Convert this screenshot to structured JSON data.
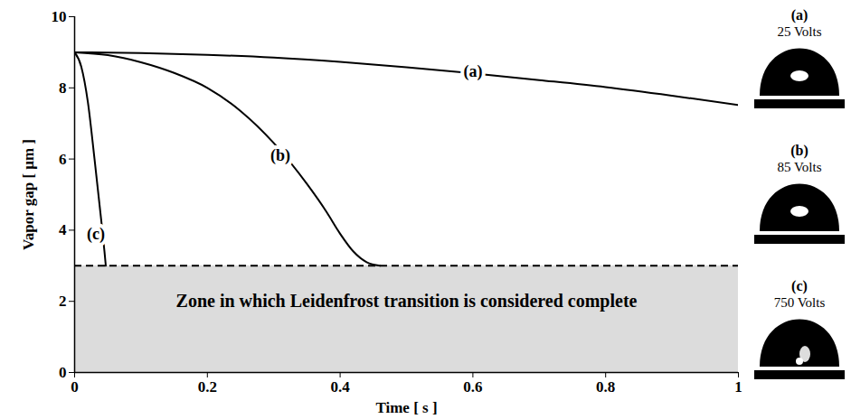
{
  "chart_data": {
    "type": "line",
    "x_label": "Time [ s ]",
    "y_label": "Vapor gap [ μm ]",
    "xlim": [
      0,
      1
    ],
    "xticks": [
      0,
      0.2,
      0.4,
      0.6,
      0.8,
      1
    ],
    "ylim": [
      0,
      10
    ],
    "yticks": [
      0,
      2,
      4,
      6,
      8,
      10
    ],
    "grid": false,
    "series": [
      {
        "name": "(a)",
        "color": "#000000",
        "line_style": "solid",
        "label_x": 0.6,
        "label_y": 8.45,
        "x": [
          0,
          0.1,
          0.2,
          0.3,
          0.4,
          0.5,
          0.6,
          0.7,
          0.8,
          0.9,
          1
        ],
        "values": [
          9,
          8.98,
          8.93,
          8.85,
          8.73,
          8.58,
          8.41,
          8.22,
          8.02,
          7.78,
          7.52
        ]
      },
      {
        "name": "(b)",
        "color": "#000000",
        "line_style": "solid",
        "label_x": 0.31,
        "label_y": 6.1,
        "x": [
          0,
          0.05,
          0.1,
          0.15,
          0.2,
          0.25,
          0.3,
          0.35,
          0.38,
          0.4,
          0.42,
          0.44,
          0.46
        ],
        "values": [
          9,
          8.92,
          8.72,
          8.42,
          8.0,
          7.35,
          6.45,
          5.3,
          4.5,
          3.9,
          3.4,
          3.1,
          3.0
        ]
      },
      {
        "name": "(c)",
        "color": "#000000",
        "line_style": "solid",
        "label_x": 0.032,
        "label_y": 3.9,
        "x": [
          0,
          0.01,
          0.02,
          0.03,
          0.04,
          0.045,
          0.047
        ],
        "values": [
          9,
          8.6,
          7.6,
          6.0,
          4.3,
          3.4,
          3.0
        ]
      }
    ],
    "zone": {
      "from": 0,
      "to": 3,
      "line_style": "dashed",
      "color": "#dcdcdc",
      "text": "Zone in which Leidenfrost transition is considered complete",
      "x": 0.5,
      "y": 2
    },
    "insets": [
      {
        "label": "(a)",
        "text": "25 Volts"
      },
      {
        "label": "(b)",
        "text": "85 Volts"
      },
      {
        "label": "(c)",
        "text": "750 Volts"
      }
    ]
  }
}
